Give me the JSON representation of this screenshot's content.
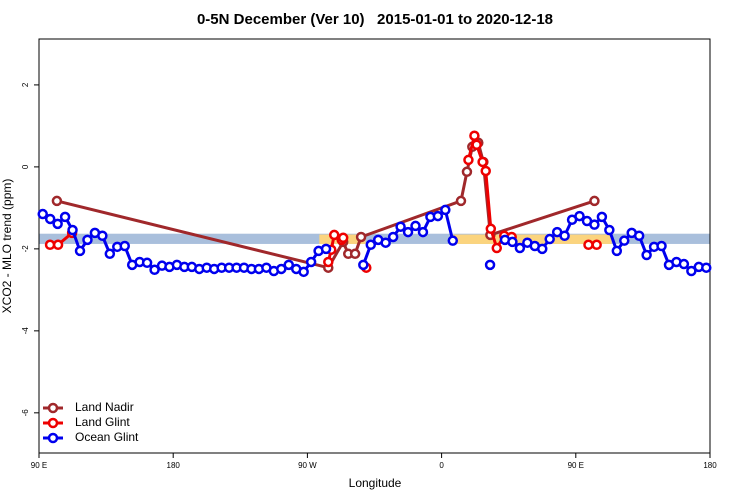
{
  "chart_data": {
    "type": "line",
    "title": "0-5N December (Ver 10)   2015-01-01 to 2020-12-18",
    "x_label": "Longitude",
    "y_label": "XCO2 - MLO trend (ppm)",
    "xlim": [
      90,
      540
    ],
    "xticks": [
      {
        "value": 90,
        "label": "90 E"
      },
      {
        "value": 180,
        "label": "180"
      },
      {
        "value": 270,
        "label": "90 W"
      },
      {
        "value": 360,
        "label": "0"
      },
      {
        "value": 450,
        "label": "90 E"
      },
      {
        "value": 540,
        "label": "180"
      }
    ],
    "ylim": [
      -6.98,
      3.12
    ],
    "yticks": [
      2,
      0,
      -2,
      -4,
      -6
    ],
    "legend": "bottom-left",
    "bands": [
      {
        "color": "#a9bfdc",
        "x": [
          90,
          540
        ],
        "y": [
          -1.88,
          -1.63
        ]
      },
      {
        "color": "#fbd47e",
        "x": [
          278,
          309
        ],
        "y": [
          -1.88,
          -1.65
        ]
      },
      {
        "color": "#fbd47e",
        "x": [
          366,
          474
        ],
        "y": [
          -1.88,
          -1.65
        ]
      }
    ],
    "series": [
      {
        "name": "Land Nadir",
        "color": "#a0282b",
        "x": [
          102,
          284,
          294,
          297.4,
          302,
          306,
          373,
          377,
          380.6,
          384.6,
          388,
          392.7,
          462.5
        ],
        "values": [
          -0.83,
          -2.46,
          -1.83,
          -2.12,
          -2.12,
          -1.71,
          -0.83,
          -0.12,
          0.49,
          0.59,
          0.12,
          -1.66,
          -0.83
        ]
      },
      {
        "name": "Land Glint",
        "color": "#ee0000",
        "x": [
          97.4,
          102.8,
          112.2,
          250,
          284,
          286,
          288,
          293,
          294,
          300,
          309.5,
          340,
          378,
          382,
          383.5,
          387.5,
          389.6,
          393,
          397,
          402,
          407,
          430,
          458.5,
          464
        ],
        "values": [
          -1.9,
          -1.9,
          -1.61,
          null,
          -2.32,
          -2.02,
          -1.66,
          -1.78,
          -1.73,
          null,
          -2.46,
          null,
          0.17,
          0.76,
          0.54,
          0.12,
          -0.1,
          -1.51,
          -1.98,
          -1.68,
          -1.71,
          null,
          -1.9,
          -1.9
        ]
      },
      {
        "name": "Ocean Glint",
        "color": "#0000ee",
        "x": [
          92.5,
          97.5,
          102.5,
          107.5,
          112.5,
          117.5,
          122.5,
          127.5,
          132.5,
          137.5,
          142.5,
          147.5,
          152.5,
          157.5,
          162.5,
          167.5,
          172.5,
          177.5,
          182.5,
          187.5,
          192.5,
          197.5,
          202.5,
          207.5,
          212.5,
          217.5,
          222.5,
          227.5,
          232.5,
          237.5,
          242.5,
          247.5,
          252.5,
          257.5,
          262.5,
          267.5,
          272.5,
          277.5,
          282.5,
          287.5,
          307.5,
          312.5,
          317.5,
          322.5,
          327.5,
          332.5,
          337.5,
          342.5,
          347.5,
          352.5,
          357.5,
          362.5,
          367.5,
          372.5,
          392.5,
          397.5,
          402.5,
          407.5,
          412.5,
          417.5,
          422.5,
          427.5,
          432.5,
          437.5,
          442.5,
          447.5,
          452.5,
          457.5,
          462.5,
          467.5,
          472.5,
          477.5,
          482.5,
          487.5,
          492.5,
          497.5,
          502.5,
          507.5,
          512.5,
          517.5,
          522.5,
          527.5,
          532.5,
          537.5
        ],
        "values": [
          -1.15,
          -1.27,
          -1.39,
          -1.22,
          -1.54,
          -2.05,
          -1.78,
          -1.61,
          -1.68,
          -2.12,
          -1.95,
          -1.93,
          -2.39,
          -2.32,
          -2.34,
          -2.51,
          -2.41,
          -2.44,
          -2.39,
          -2.44,
          -2.44,
          -2.49,
          -2.46,
          -2.49,
          -2.46,
          -2.46,
          -2.46,
          -2.46,
          -2.49,
          -2.49,
          -2.46,
          -2.54,
          -2.49,
          -2.39,
          -2.49,
          -2.56,
          -2.32,
          -2.05,
          -2.0,
          null,
          -2.39,
          -1.9,
          -1.78,
          -1.85,
          -1.71,
          -1.46,
          -1.59,
          -1.44,
          -1.59,
          -1.22,
          -1.2,
          -1.05,
          -1.8,
          null,
          -2.39,
          null,
          -1.78,
          -1.83,
          -1.98,
          -1.85,
          -1.93,
          -2.0,
          -1.76,
          -1.59,
          -1.68,
          -1.29,
          -1.2,
          -1.32,
          -1.41,
          -1.22,
          -1.54,
          -2.05,
          -1.8,
          -1.61,
          -1.68,
          -2.15,
          -1.95,
          -1.93,
          -2.39,
          -2.32,
          -2.37,
          -2.54,
          -2.44,
          -2.46
        ]
      }
    ]
  }
}
